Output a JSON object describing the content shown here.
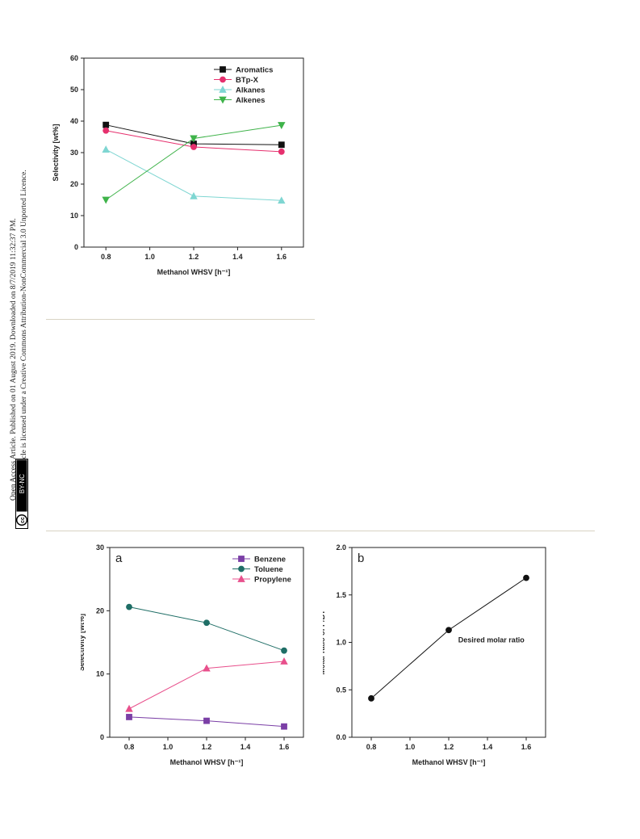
{
  "sidebar": {
    "line1": "Open Access Article. Published on 01 August 2019. Downloaded on 8/7/2019 11:32:37 PM.",
    "line2": "This article is licensed under a Creative Commons Attribution-NonCommercial 3.0 Unported Licence.",
    "badge_cc": "cc",
    "badge_text": "BY-NC"
  },
  "chart_data": [
    {
      "type": "line",
      "xlabel": "Methanol WHSV [h⁻¹]",
      "ylabel": "Selectivity [wt%]",
      "x": [
        0.8,
        1.2,
        1.6
      ],
      "xlim": [
        0.7,
        1.7
      ],
      "ylim": [
        0,
        60
      ],
      "xticks": [
        "0.8",
        "1.0",
        "1.2",
        "1.4",
        "1.6"
      ],
      "yticks": [
        "0",
        "10",
        "20",
        "30",
        "40",
        "50",
        "60"
      ],
      "legend_position": "top-right",
      "grid": false,
      "series": [
        {
          "name": "Aromatics",
          "values": [
            38.8,
            32.8,
            32.5
          ],
          "color": "#111111",
          "marker": "square"
        },
        {
          "name": "BTp-X",
          "values": [
            37.0,
            31.8,
            30.3
          ],
          "color": "#e6306e",
          "marker": "circle"
        },
        {
          "name": "Alkanes",
          "values": [
            31.0,
            16.2,
            14.8
          ],
          "color": "#7fd6d2",
          "marker": "triangle-up"
        },
        {
          "name": "Alkenes",
          "values": [
            15.0,
            34.5,
            38.7
          ],
          "color": "#3fb34a",
          "marker": "triangle-down"
        }
      ]
    },
    {
      "type": "line",
      "panel_label": "a",
      "xlabel": "Methanol WHSV [h⁻¹]",
      "ylabel": "Selectivity [wt%]",
      "x": [
        0.8,
        1.2,
        1.6
      ],
      "xlim": [
        0.7,
        1.7
      ],
      "ylim": [
        0,
        30
      ],
      "xticks": [
        "0.8",
        "1.0",
        "1.2",
        "1.4",
        "1.6"
      ],
      "yticks": [
        "0",
        "10",
        "20",
        "30"
      ],
      "legend_position": "top-right",
      "grid": false,
      "series": [
        {
          "name": "Benzene",
          "values": [
            3.2,
            2.6,
            1.7
          ],
          "color": "#7b3fa6",
          "marker": "square"
        },
        {
          "name": "Toluene",
          "values": [
            20.6,
            18.1,
            13.7
          ],
          "color": "#1f6e66",
          "marker": "circle"
        },
        {
          "name": "Propylene",
          "values": [
            4.5,
            10.9,
            12.0
          ],
          "color": "#e8508c",
          "marker": "triangle-up"
        }
      ]
    },
    {
      "type": "line",
      "panel_label": "b",
      "xlabel": "Methanol WHSV [h⁻¹]",
      "ylabel": "Molar ratio of P/BT",
      "x": [
        0.8,
        1.2,
        1.6
      ],
      "xlim": [
        0.7,
        1.7
      ],
      "ylim": [
        0.0,
        2.0
      ],
      "xticks": [
        "0.8",
        "1.0",
        "1.2",
        "1.4",
        "1.6"
      ],
      "yticks": [
        "0.0",
        "0.5",
        "1.0",
        "1.5",
        "2.0"
      ],
      "grid": false,
      "annotation": "Desired molar ratio",
      "series": [
        {
          "values": [
            0.41,
            1.13,
            1.68
          ],
          "color": "#111111",
          "marker": "circle"
        }
      ]
    }
  ]
}
